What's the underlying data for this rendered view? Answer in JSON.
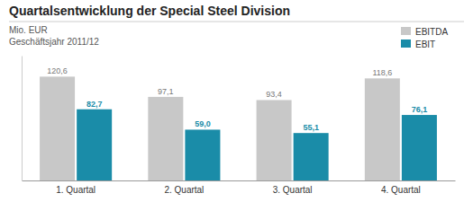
{
  "chart_data": {
    "type": "bar",
    "title": "Quartalsentwicklung der Special Steel Division",
    "subtitle": [
      "Mio. EUR",
      "Geschäftsjahr 2011/12"
    ],
    "categories": [
      "1. Quartal",
      "2. Quartal",
      "3. Quartal",
      "4. Quartal"
    ],
    "series": [
      {
        "name": "EBITDA",
        "color": "#c8c8c8",
        "values": [
          120.6,
          97.1,
          93.4,
          118.6
        ],
        "value_labels": [
          "120,6",
          "97,1",
          "93,4",
          "118,6"
        ]
      },
      {
        "name": "EBIT",
        "color": "#1a8ca8",
        "values": [
          82.7,
          59.0,
          55.1,
          76.1
        ],
        "value_labels": [
          "82,7",
          "59,0",
          "55,1",
          "76,1"
        ]
      }
    ],
    "ylim": [
      0,
      145
    ],
    "yticks": [],
    "grid": false,
    "legend": "upper right",
    "data_labels": true,
    "tick_labels": "x"
  }
}
